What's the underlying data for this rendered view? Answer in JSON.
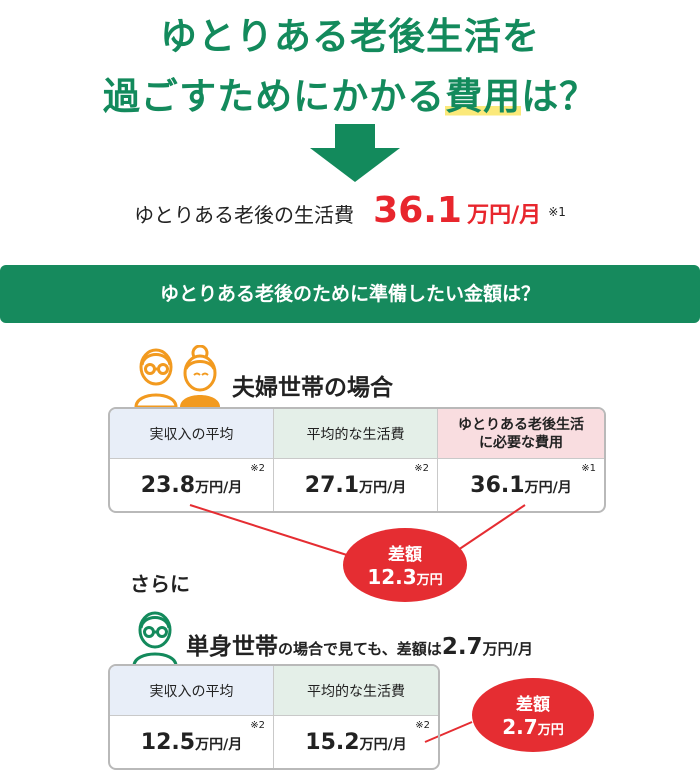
{
  "title": {
    "line1": "ゆとりある老後生活を",
    "line2_before": "過ごすためにかかる",
    "line2_highlight": "費用",
    "line2_after": "は？"
  },
  "living_cost": {
    "label": "ゆとりある老後の生活費",
    "value": "36.1",
    "unit": "万円/月",
    "note": "※1"
  },
  "banner": "ゆとりある老後のために準備したい金額は？",
  "couple": {
    "heading": "夫婦世帯の場合",
    "headers": [
      "実収入の平均",
      "平均的な生活費",
      "ゆとりある老後生活",
      "に必要な費用"
    ],
    "values": [
      {
        "num": "23.8",
        "unit": "万円/月",
        "note": "※2"
      },
      {
        "num": "27.1",
        "unit": "万円/月",
        "note": "※2"
      },
      {
        "num": "36.1",
        "unit": "万円/月",
        "note": "※1"
      }
    ],
    "diff_label": "差額",
    "diff_value": "12.3",
    "diff_unit": "万円"
  },
  "connector": "さらに",
  "single": {
    "heading_main": "単身世帯",
    "heading_small1": "の場合で見ても、差額は",
    "heading_num": "2.7",
    "heading_small2": "万円/月",
    "headers": [
      "実収入の平均",
      "平均的な生活費"
    ],
    "values": [
      {
        "num": "12.5",
        "unit": "万円/月",
        "note": "※2"
      },
      {
        "num": "15.2",
        "unit": "万円/月",
        "note": "※2"
      }
    ],
    "diff_label": "差額",
    "diff_value": "2.7",
    "diff_unit": "万円"
  },
  "colors": {
    "green": "#138a5c",
    "red": "#e8262d",
    "orange": "#f29a1f",
    "highlight": "#fbe97a"
  }
}
